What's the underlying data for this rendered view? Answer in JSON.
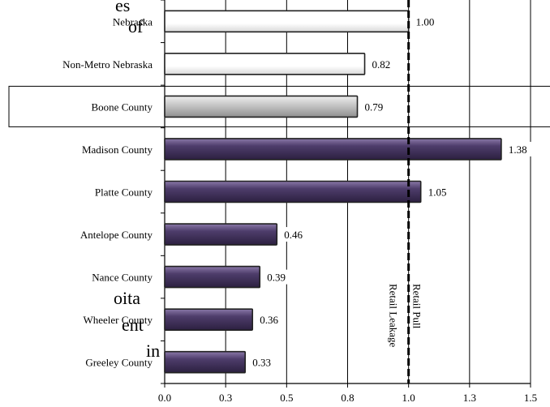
{
  "page_fragments": [
    {
      "id": "frag-es",
      "text": "es"
    },
    {
      "id": "frag-of",
      "text": "of"
    },
    {
      "id": "frag-pita",
      "text": "oita"
    },
    {
      "id": "frag-ent",
      "text": "ent"
    },
    {
      "id": "frag-in",
      "text": "in"
    }
  ],
  "colors": {
    "benchmark_fill": "#ffffff",
    "highlight_fill": "#c9c9c9",
    "county_fill": "#4e3d6b",
    "bar_stroke": "#222222",
    "grid": "#000000"
  },
  "chart_data": {
    "type": "bar",
    "orientation": "horizontal",
    "categories": [
      "Nebraska",
      "Non-Metro Nebraska",
      "Boone County",
      "Madison County",
      "Platte County",
      "Antelope County",
      "Nance County",
      "Wheeler County",
      "Greeley County"
    ],
    "values": [
      1.0,
      0.82,
      0.79,
      1.38,
      1.05,
      0.46,
      0.39,
      0.36,
      0.33
    ],
    "value_labels": [
      "1.00",
      "0.82",
      "0.79",
      "1.38",
      "1.05",
      "0.46",
      "0.39",
      "0.36",
      "0.33"
    ],
    "bar_groups": [
      "benchmark",
      "benchmark",
      "highlight",
      "county",
      "county",
      "county",
      "county",
      "county",
      "county"
    ],
    "highlighted_category": "Boone County",
    "xlim": [
      0.0,
      1.5
    ],
    "x_ticks": [
      0.0,
      0.25,
      0.5,
      0.75,
      1.0,
      1.25,
      1.5
    ],
    "x_tick_labels": [
      "0.0",
      "0.3",
      "0.5",
      "0.8",
      "1.0",
      "1.3",
      "1.5"
    ],
    "grid": "vertical",
    "reference_line": {
      "x": 1.0,
      "style": "dashed"
    },
    "annotations": [
      {
        "text": "Retail Pull",
        "side": "right",
        "rotation": 90
      },
      {
        "text": "Retail Leakage",
        "side": "left",
        "rotation": 90
      }
    ]
  }
}
